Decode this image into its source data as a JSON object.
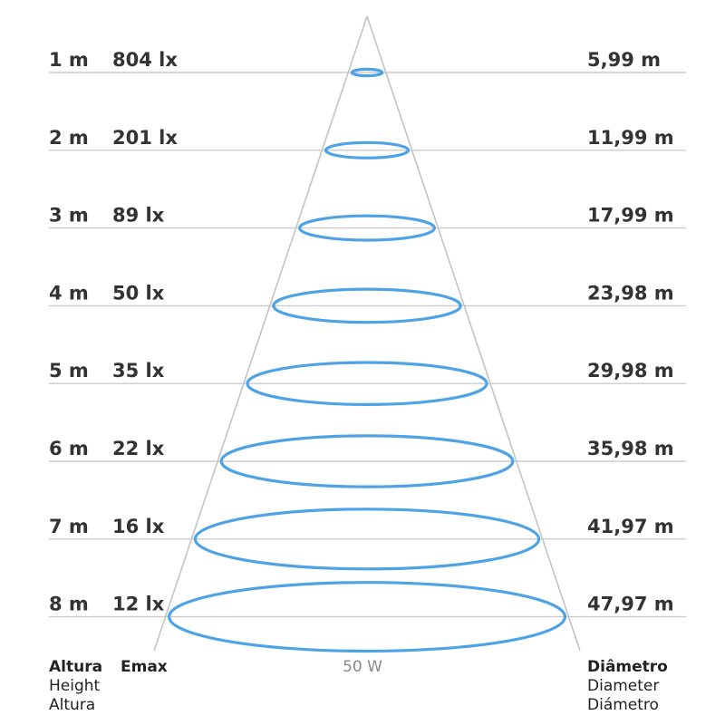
{
  "rows": [
    {
      "height": "1 m",
      "emax": "804 lx",
      "diameter": "5,99 m"
    },
    {
      "height": "2 m",
      "emax": "201 lx",
      "diameter": "11,99 m"
    },
    {
      "height": "3 m",
      "emax": "89 lx",
      "diameter": "17,99 m"
    },
    {
      "height": "4 m",
      "emax": "50 lx",
      "diameter": "23,98 m"
    },
    {
      "height": "5 m",
      "emax": "35 lx",
      "diameter": "29,98 m"
    },
    {
      "height": "6 m",
      "emax": "22 lx",
      "diameter": "35,98 m"
    },
    {
      "height": "7 m",
      "emax": "16 lx",
      "diameter": "41,97 m"
    },
    {
      "height": "8 m",
      "emax": "12 lx",
      "diameter": "47,97 m"
    }
  ],
  "footer": {
    "height_label": [
      "Altura",
      "Height",
      "Altura"
    ],
    "emax_label": "Emax",
    "power": "50 W",
    "diameter_label": [
      "Diâmetro",
      "Diameter",
      "Diámetro"
    ]
  },
  "colors": {
    "beam_ring": "#4da3e6",
    "row_line": "#cccccc",
    "cone_line": "#c4c4c4",
    "text": "#333333"
  }
}
